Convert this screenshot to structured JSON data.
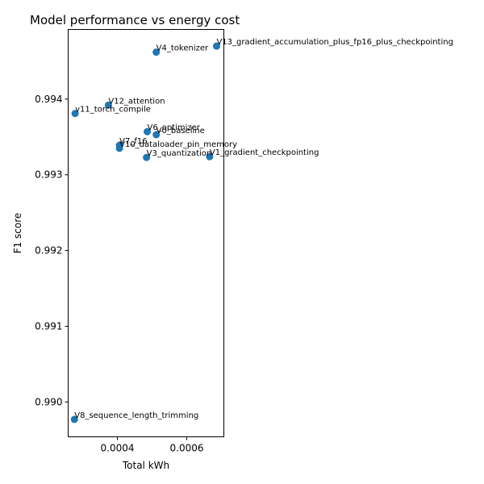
{
  "chart_data": {
    "type": "scatter",
    "title": "Model performance vs energy cost",
    "xlabel": "Total kWh",
    "ylabel": "F1 score",
    "xlim": [
      0.000258,
      0.000707
    ],
    "ylim": [
      0.98954,
      0.99492
    ],
    "xticks": [
      {
        "value": 0.0004,
        "label": "0.0004"
      },
      {
        "value": 0.0006,
        "label": "0.0006"
      }
    ],
    "yticks": [
      {
        "value": 0.99,
        "label": "0.990"
      },
      {
        "value": 0.991,
        "label": "0.991"
      },
      {
        "value": 0.992,
        "label": "0.992"
      },
      {
        "value": 0.993,
        "label": "0.993"
      },
      {
        "value": 0.994,
        "label": "0.994"
      }
    ],
    "grid": false,
    "marker_color": "#1f77b4",
    "points": [
      {
        "label": "V13_gradient_accumulation_plus_fp16_plus_checkpointing",
        "x": 0.000686,
        "y": 0.9947
      },
      {
        "label": "V4_tokenizer",
        "x": 0.000512,
        "y": 0.99462
      },
      {
        "label": "V12_attention",
        "x": 0.000374,
        "y": 0.99392
      },
      {
        "label": "v11_torch_compile",
        "x": 0.000278,
        "y": 0.99381
      },
      {
        "label": "V6_optimizer",
        "x": 0.000486,
        "y": 0.99357
      },
      {
        "label": "V0_baseline",
        "x": 0.000512,
        "y": 0.99353
      },
      {
        "label": "V7_f16",
        "x": 0.000406,
        "y": 0.99339
      },
      {
        "label": "V10_dataloader_pin_memory",
        "x": 0.000406,
        "y": 0.99335
      },
      {
        "label": "V3_quantization",
        "x": 0.000484,
        "y": 0.99323
      },
      {
        "label": "V1_gradient_checkpointing",
        "x": 0.000666,
        "y": 0.99324
      },
      {
        "label": "V8_sequence_length_trimming",
        "x": 0.000276,
        "y": 0.98977
      }
    ]
  }
}
